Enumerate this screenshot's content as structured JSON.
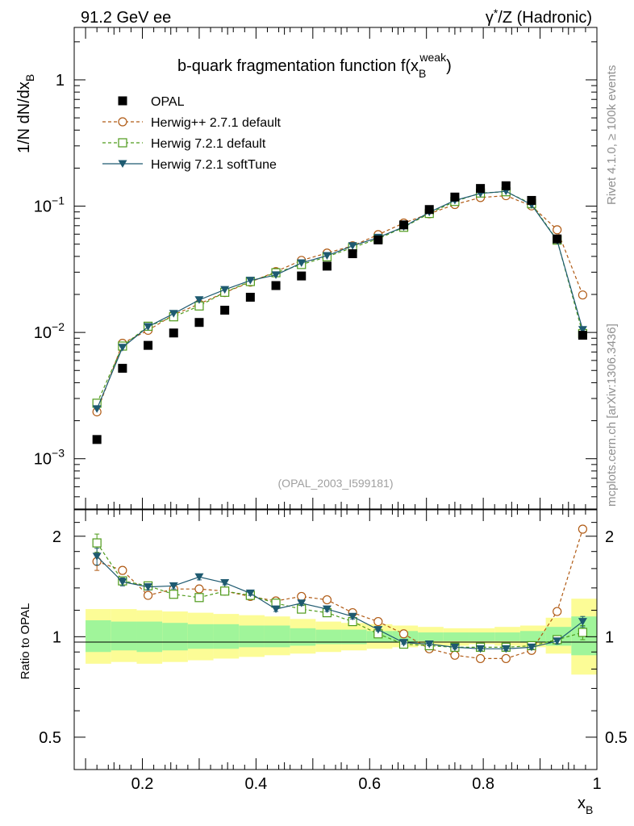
{
  "header": {
    "left": "91.2 GeV ee",
    "right_gamma": "γ",
    "right_star": "*",
    "right_rest": "/Z (Hadronic)"
  },
  "side_text": {
    "rivet": "Rivet 4.1.0, ≥ 100k events",
    "mcplots": "mcplots.cern.ch [arXiv:1306.3436]"
  },
  "colors": {
    "opal": "#000000",
    "herwigpp": "#b05a14",
    "herwig721": "#4e9a1a",
    "softtune": "#1e5a70",
    "band_inner": "#a0f59a",
    "band_outer": "#fcfc96"
  },
  "chart_data": [
    {
      "type": "scatter",
      "title_main": "b-quark fragmentation function f(x",
      "title_sub": "B",
      "title_sup": "weak",
      "title_close": ")",
      "ylabel_main": "1/N  dN/dx",
      "ylabel_sub": "B",
      "watermark": "(OPAL_2003_I599181)",
      "yscale": "log",
      "xlim": [
        0.08,
        1.0
      ],
      "ylim": [
        0.0004,
        2.6
      ],
      "yticks": [
        {
          "value": 1,
          "base": "1",
          "exp": ""
        },
        {
          "value": 0.1,
          "base": "10",
          "exp": "−1"
        },
        {
          "value": 0.01,
          "base": "10",
          "exp": "−2"
        },
        {
          "value": 0.001,
          "base": "10",
          "exp": "−3"
        }
      ],
      "legend": [
        "OPAL",
        "Herwig++ 2.7.1 default",
        "Herwig 7.2.1 default",
        "Herwig 7.2.1 softTune"
      ],
      "x": [
        0.12,
        0.165,
        0.21,
        0.255,
        0.3,
        0.345,
        0.39,
        0.435,
        0.48,
        0.525,
        0.57,
        0.615,
        0.66,
        0.705,
        0.75,
        0.795,
        0.84,
        0.885,
        0.93,
        0.975
      ],
      "series": [
        {
          "name": "OPAL",
          "values": [
            0.00142,
            0.0052,
            0.0079,
            0.0099,
            0.012,
            0.015,
            0.019,
            0.0235,
            0.028,
            0.0335,
            0.042,
            0.054,
            0.071,
            0.094,
            0.118,
            0.138,
            0.145,
            0.111,
            0.055,
            0.0095
          ]
        },
        {
          "name": "Herwig++ 2.7.1 default",
          "values": [
            0.00235,
            0.0082,
            0.0104,
            0.0138,
            0.0168,
            0.0207,
            0.025,
            0.0303,
            0.0372,
            0.0425,
            0.0485,
            0.0595,
            0.0735,
            0.087,
            0.103,
            0.117,
            0.121,
            0.1005,
            0.065,
            0.0198
          ]
        },
        {
          "name": "Herwig 7.2.1 default",
          "values": [
            0.00275,
            0.0078,
            0.0112,
            0.0133,
            0.0162,
            0.0208,
            0.0253,
            0.0297,
            0.0345,
            0.0397,
            0.047,
            0.0552,
            0.068,
            0.0875,
            0.109,
            0.127,
            0.13,
            0.1045,
            0.0538,
            0.0098
          ]
        },
        {
          "name": "Herwig 7.2.1 softTune",
          "values": [
            0.00248,
            0.0076,
            0.0111,
            0.0141,
            0.0181,
            0.0218,
            0.0258,
            0.0285,
            0.0355,
            0.0405,
            0.0485,
            0.0565,
            0.0685,
            0.0895,
            0.111,
            0.126,
            0.131,
            0.1025,
            0.0535,
            0.0105
          ]
        }
      ]
    },
    {
      "type": "scatter",
      "ylabel": "Ratio to OPAL",
      "xlabel_main": "x",
      "xlabel_sub": "B",
      "yscale": "log",
      "xlim": [
        0.08,
        1.0
      ],
      "ylim": [
        0.4,
        2.4
      ],
      "yticks": [
        {
          "value": 2,
          "label": "2"
        },
        {
          "value": 1,
          "label": "1"
        },
        {
          "value": 0.5,
          "label": "0.5"
        }
      ],
      "xticks": [
        {
          "value": 0.2,
          "label": "0.2"
        },
        {
          "value": 0.4,
          "label": "0.4"
        },
        {
          "value": 0.6,
          "label": "0.6"
        },
        {
          "value": 0.8,
          "label": "0.8"
        },
        {
          "value": 1.0,
          "label": "1"
        }
      ],
      "x": [
        0.12,
        0.165,
        0.21,
        0.255,
        0.3,
        0.345,
        0.39,
        0.435,
        0.48,
        0.525,
        0.57,
        0.615,
        0.66,
        0.705,
        0.75,
        0.795,
        0.84,
        0.885,
        0.93,
        0.975
      ],
      "band_edges": [
        0.1,
        0.145,
        0.19,
        0.235,
        0.28,
        0.325,
        0.37,
        0.415,
        0.46,
        0.505,
        0.55,
        0.595,
        0.64,
        0.685,
        0.73,
        0.775,
        0.82,
        0.865,
        0.91,
        0.955,
        1.0
      ],
      "band_inner": [
        [
          0.9,
          1.12
        ],
        [
          0.91,
          1.11
        ],
        [
          0.9,
          1.11
        ],
        [
          0.91,
          1.1
        ],
        [
          0.92,
          1.09
        ],
        [
          0.92,
          1.09
        ],
        [
          0.93,
          1.08
        ],
        [
          0.93,
          1.08
        ],
        [
          0.94,
          1.06
        ],
        [
          0.95,
          1.05
        ],
        [
          0.95,
          1.05
        ],
        [
          0.96,
          1.04
        ],
        [
          0.96,
          1.04
        ],
        [
          0.97,
          1.03
        ],
        [
          0.97,
          1.03
        ],
        [
          0.97,
          1.03
        ],
        [
          0.97,
          1.03
        ],
        [
          0.96,
          1.04
        ],
        [
          0.94,
          1.07
        ],
        [
          0.88,
          1.15
        ]
      ],
      "band_outer": [
        [
          0.83,
          1.21
        ],
        [
          0.84,
          1.21
        ],
        [
          0.83,
          1.2
        ],
        [
          0.84,
          1.19
        ],
        [
          0.85,
          1.18
        ],
        [
          0.86,
          1.17
        ],
        [
          0.87,
          1.16
        ],
        [
          0.88,
          1.15
        ],
        [
          0.89,
          1.13
        ],
        [
          0.9,
          1.11
        ],
        [
          0.91,
          1.1
        ],
        [
          0.92,
          1.09
        ],
        [
          0.93,
          1.08
        ],
        [
          0.94,
          1.07
        ],
        [
          0.94,
          1.06
        ],
        [
          0.95,
          1.06
        ],
        [
          0.94,
          1.07
        ],
        [
          0.93,
          1.08
        ],
        [
          0.89,
          1.14
        ],
        [
          0.77,
          1.3
        ]
      ],
      "series": [
        {
          "name": "Herwig++ 2.7.1 default",
          "values": [
            1.68,
            1.58,
            1.33,
            1.39,
            1.39,
            1.37,
            1.32,
            1.28,
            1.32,
            1.29,
            1.18,
            1.11,
            1.02,
            0.92,
            0.88,
            0.86,
            0.86,
            0.91,
            1.19,
            2.1
          ],
          "errors": [
            0.1,
            0.04,
            0.03,
            0.03,
            0.03,
            0.02,
            0.02,
            0.02,
            0.02,
            0.02,
            0.02,
            0.01,
            0.01,
            0.01,
            0.01,
            0.01,
            0.01,
            0.01,
            0.02,
            0.04
          ]
        },
        {
          "name": "Herwig 7.2.1 default",
          "values": [
            1.91,
            1.47,
            1.42,
            1.34,
            1.31,
            1.37,
            1.33,
            1.26,
            1.21,
            1.18,
            1.11,
            1.02,
            0.95,
            0.94,
            0.93,
            0.93,
            0.93,
            0.94,
            0.98,
            1.03
          ],
          "errors": [
            0.12,
            0.04,
            0.03,
            0.03,
            0.03,
            0.02,
            0.02,
            0.02,
            0.02,
            0.02,
            0.02,
            0.01,
            0.01,
            0.01,
            0.01,
            0.01,
            0.01,
            0.01,
            0.02,
            0.05
          ]
        },
        {
          "name": "Herwig 7.2.1 softTune",
          "values": [
            1.74,
            1.46,
            1.41,
            1.42,
            1.51,
            1.45,
            1.35,
            1.21,
            1.26,
            1.21,
            1.15,
            1.05,
            0.96,
            0.95,
            0.93,
            0.92,
            0.92,
            0.93,
            0.97,
            1.11
          ],
          "errors": [
            0.1,
            0.04,
            0.03,
            0.03,
            0.03,
            0.02,
            0.02,
            0.02,
            0.02,
            0.02,
            0.02,
            0.01,
            0.01,
            0.01,
            0.01,
            0.01,
            0.01,
            0.01,
            0.02,
            0.04
          ]
        }
      ]
    }
  ]
}
